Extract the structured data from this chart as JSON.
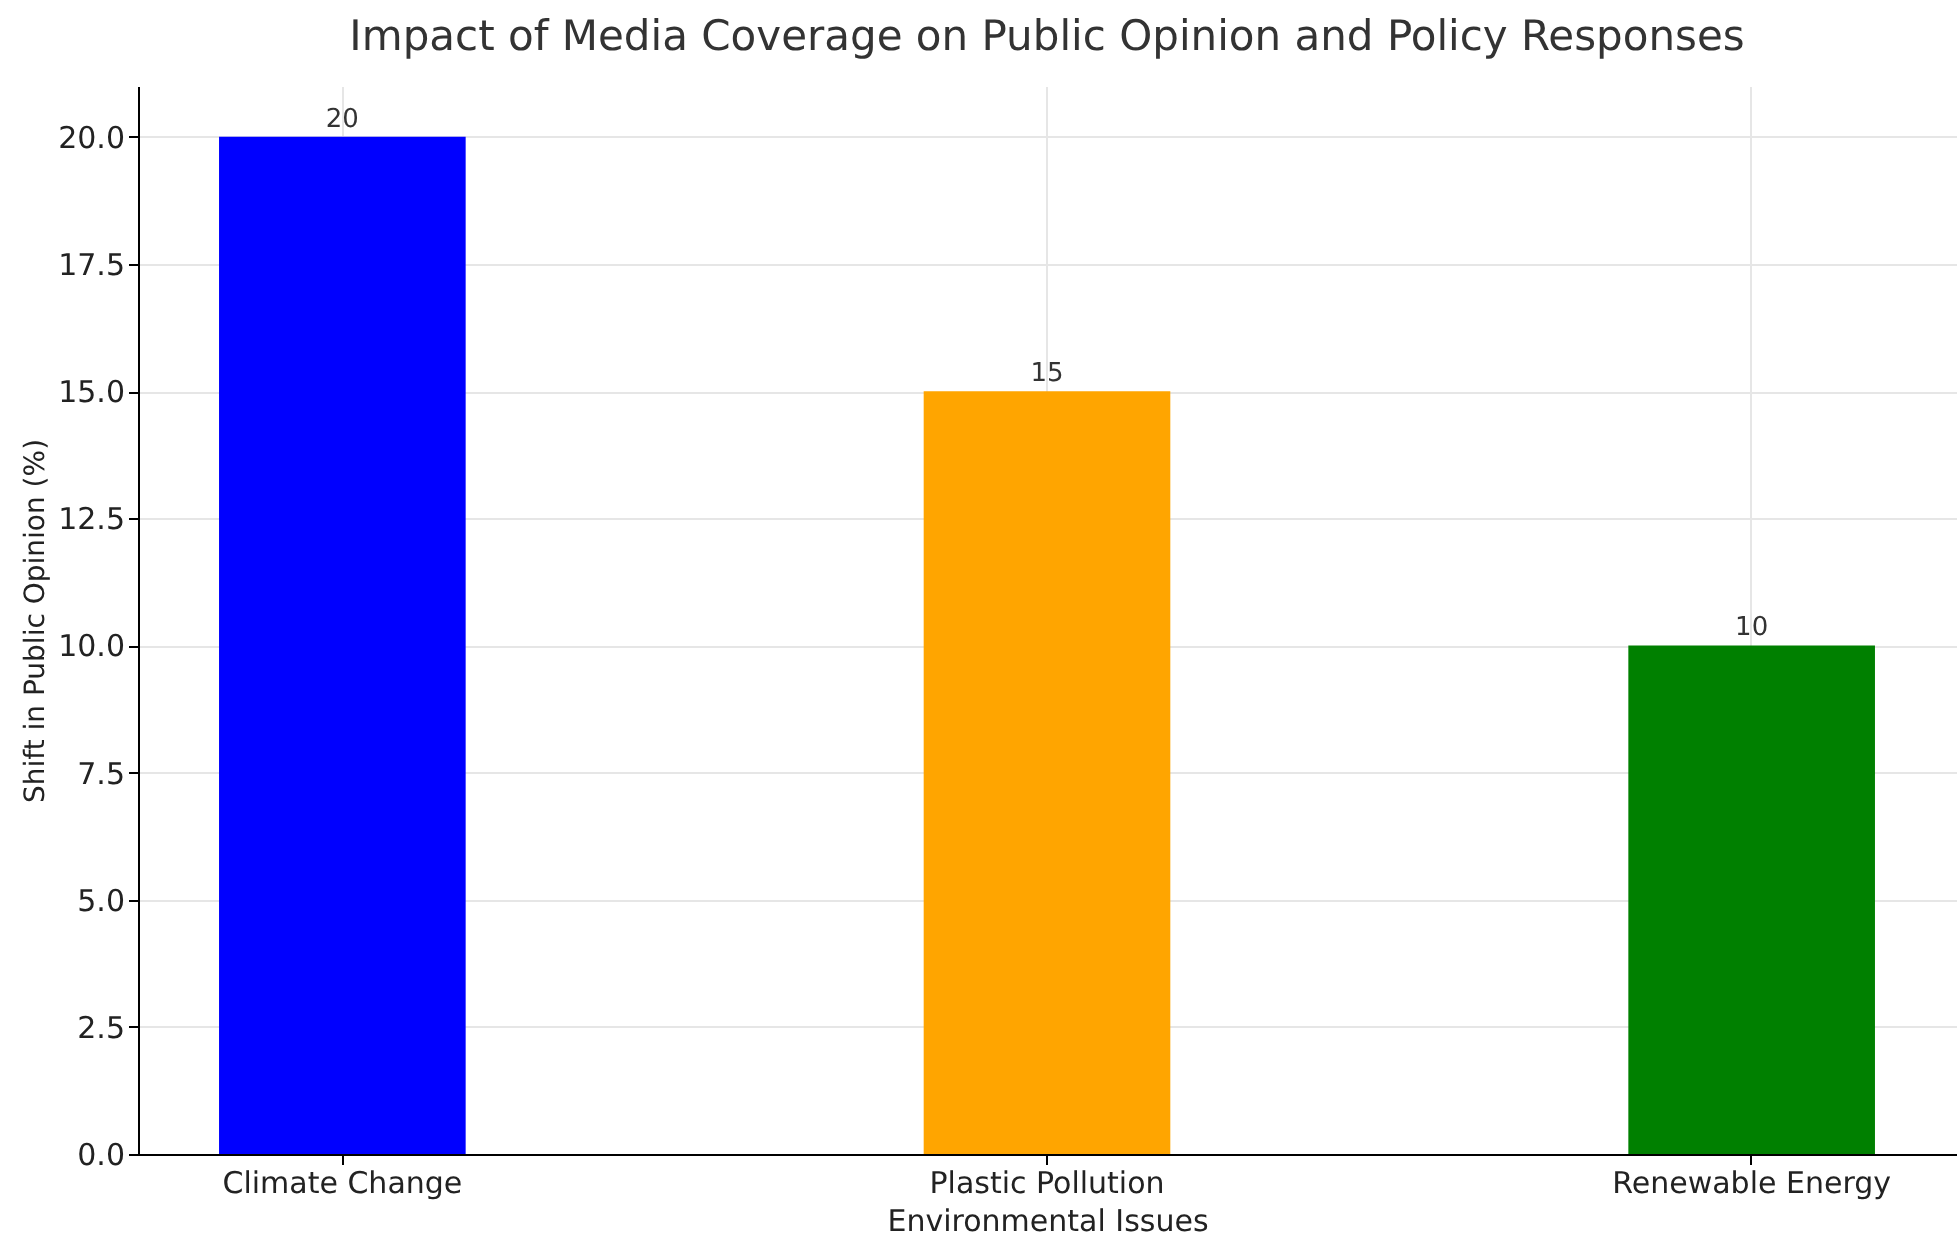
{
  "chart_data": {
    "type": "bar",
    "title": "Impact of Media Coverage on Public Opinion and Policy Responses",
    "xlabel": "Environmental Issues",
    "ylabel": "Shift in Public Opinion (%)",
    "categories": [
      "Climate Change",
      "Plastic Pollution",
      "Renewable Energy"
    ],
    "values": [
      20,
      15,
      10
    ],
    "colors": [
      "#0000ff",
      "#ffa500",
      "#008000"
    ],
    "ylim": [
      0,
      21
    ],
    "yticks": [
      {
        "value": 0,
        "label": "0.0"
      },
      {
        "value": 2.5,
        "label": "2.5"
      },
      {
        "value": 5,
        "label": "5.0"
      },
      {
        "value": 7.5,
        "label": "7.5"
      },
      {
        "value": 10,
        "label": "10.0"
      },
      {
        "value": 12.5,
        "label": "12.5"
      },
      {
        "value": 15,
        "label": "15.0"
      },
      {
        "value": 17.5,
        "label": "17.5"
      },
      {
        "value": 20,
        "label": "20.0"
      }
    ],
    "grid": true,
    "data_labels": true
  }
}
